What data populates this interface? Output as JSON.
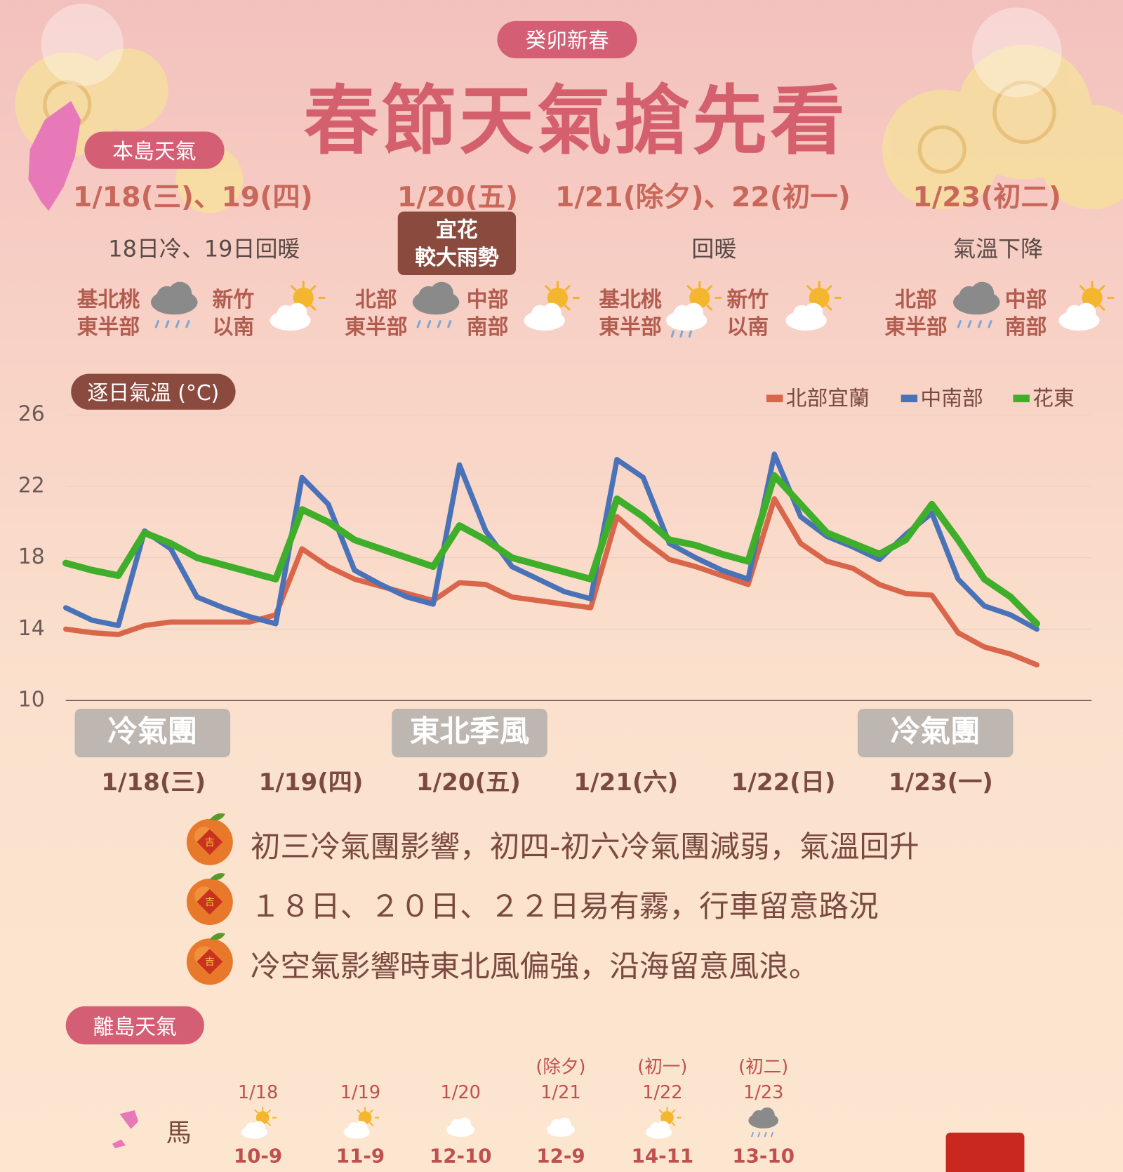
{
  "header": {
    "badge": "癸卯新春",
    "title": "春節天氣搶先看"
  },
  "main_island": {
    "badge": "本島天氣",
    "periods": [
      {
        "date": "1/18(三)、19(四)",
        "summary": "18日冷、19日回暖",
        "regions": [
          {
            "lines": [
              "基北桃",
              "東半部"
            ]
          },
          {
            "lines": [
              "新竹",
              "以南"
            ]
          }
        ]
      },
      {
        "date": "1/20(五)",
        "tag": [
          "宜花",
          "較大雨勢"
        ],
        "regions": [
          {
            "lines": [
              "北部",
              "東半部"
            ]
          },
          {
            "lines": [
              "中部",
              "南部"
            ]
          }
        ]
      },
      {
        "date": "1/21(除夕)、22(初一)",
        "summary": "回暖",
        "regions": [
          {
            "lines": [
              "基北桃",
              "東半部"
            ]
          },
          {
            "lines": [
              "新竹",
              "以南"
            ]
          }
        ]
      },
      {
        "date": "1/23(初二)",
        "summary": "氣溫下降",
        "regions": [
          {
            "lines": [
              "北部",
              "東半部"
            ]
          },
          {
            "lines": [
              "中部",
              "南部"
            ]
          }
        ]
      }
    ]
  },
  "chart_data": {
    "type": "line",
    "title": "逐日氣溫 (°C)",
    "categories": [
      null,
      null,
      null,
      "1/18(三)",
      null,
      null,
      null,
      null,
      null,
      "1/19(四)",
      null,
      null,
      null,
      null,
      null,
      "1/20(五)",
      null,
      null,
      null,
      null,
      null,
      "1/21(六)",
      null,
      null,
      null,
      null,
      null,
      "1/22(日)",
      null,
      null,
      null,
      null,
      null,
      "1/23(一)",
      null,
      null,
      null,
      null
    ],
    "series": [
      {
        "name": "北部宜蘭",
        "color": "#d9654a",
        "values": [
          14.0,
          13.8,
          13.7,
          14.2,
          14.4,
          14.4,
          14.4,
          14.4,
          14.8,
          18.5,
          17.5,
          16.8,
          16.4,
          16.0,
          15.6,
          16.6,
          16.5,
          15.8,
          15.6,
          15.4,
          15.2,
          20.3,
          19.0,
          17.9,
          17.5,
          17.0,
          16.5,
          21.3,
          18.8,
          17.8,
          17.4,
          16.5,
          16.0,
          15.9,
          13.8,
          13.0,
          12.6,
          12.0
        ]
      },
      {
        "name": "中南部",
        "color": "#4a72b8",
        "values": [
          15.2,
          14.5,
          14.2,
          19.5,
          18.5,
          15.8,
          15.2,
          14.7,
          14.3,
          22.5,
          21.0,
          17.3,
          16.5,
          15.8,
          15.4,
          23.2,
          19.5,
          17.5,
          16.8,
          16.1,
          15.7,
          23.5,
          22.5,
          18.8,
          18.0,
          17.3,
          16.8,
          23.8,
          20.3,
          19.2,
          18.6,
          17.9,
          19.3,
          20.5,
          16.8,
          15.3,
          14.8,
          14.0
        ]
      },
      {
        "name": "花東",
        "color": "#3fae2a",
        "values": [
          17.7,
          17.3,
          17.0,
          19.4,
          18.8,
          18.0,
          17.6,
          17.2,
          16.8,
          20.7,
          20.0,
          19.0,
          18.5,
          18.0,
          17.5,
          19.8,
          19.0,
          18.0,
          17.6,
          17.2,
          16.8,
          21.3,
          20.3,
          19.0,
          18.7,
          18.2,
          17.8,
          22.6,
          21.0,
          19.4,
          18.8,
          18.2,
          19.0,
          21.0,
          19.0,
          16.8,
          15.8,
          14.3
        ]
      }
    ],
    "ylim": [
      10,
      26
    ],
    "yticks": [
      10,
      14,
      18,
      22,
      26
    ],
    "grid": true,
    "legend": "top-right",
    "annotations": [
      "冷氣團",
      "東北季風",
      "冷氣團"
    ]
  },
  "notes": [
    "初三冷氣團影響，初四-初六冷氣團減弱，氣溫回升",
    "１８日、２０日、２２日易有霧，行車留意路況",
    "冷空氣影響時東北風偏強，沿海留意風浪。"
  ],
  "outer_islands": {
    "badge": "離島天氣",
    "rows": [
      {
        "name": "馬",
        "days": [
          {
            "date": "1/18",
            "temp": "10-9"
          },
          {
            "date": "1/19",
            "temp": "11-9"
          },
          {
            "date": "1/20",
            "temp": "12-10"
          },
          {
            "prefix": "(除夕)",
            "date": "1/21",
            "temp": "12-9"
          },
          {
            "prefix": "(初一)",
            "date": "1/22",
            "temp": "14-11"
          },
          {
            "prefix": "(初二)",
            "date": "1/23",
            "temp": "13-10"
          }
        ]
      }
    ]
  }
}
